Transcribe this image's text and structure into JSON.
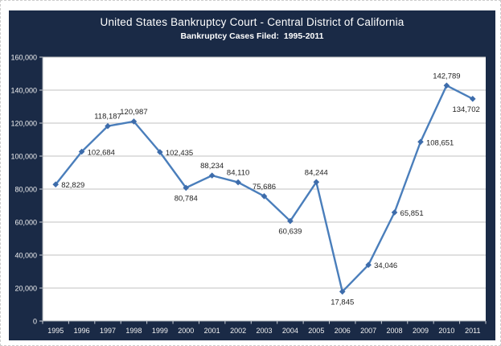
{
  "chart_data": {
    "type": "line",
    "title": "United States Bankruptcy Court - Central District of California",
    "subtitle": "Bankruptcy Cases Filed:  1995-2011",
    "xlabel": "",
    "ylabel": "",
    "categories": [
      "1995",
      "1996",
      "1997",
      "1998",
      "1999",
      "2000",
      "2001",
      "2002",
      "2003",
      "2004",
      "2005",
      "2006",
      "2007",
      "2008",
      "2009",
      "2010",
      "2011"
    ],
    "values": [
      82829,
      102684,
      118187,
      120987,
      102435,
      80784,
      88234,
      84110,
      75686,
      60639,
      84244,
      17845,
      34046,
      65851,
      108651,
      142789,
      134702
    ],
    "data_labels": [
      "82,829",
      "102,684",
      "118,187",
      "120,987",
      "102,435",
      "80,784",
      "88,234",
      "84,110",
      "75,686",
      "60,639",
      "84,244",
      "17,845",
      "34,046",
      "65,851",
      "108,651",
      "142,789",
      "134,702"
    ],
    "ylim": [
      0,
      160000
    ],
    "ytick_step": 20000,
    "ytick_labels": [
      "0",
      "20,000",
      "40,000",
      "60,000",
      "80,000",
      "100,000",
      "120,000",
      "140,000",
      "160,000"
    ],
    "grid": true,
    "legend": "none",
    "marker": "diamond",
    "label_positions": [
      "right",
      "right",
      "above",
      "above",
      "right",
      "below",
      "above",
      "above",
      "above",
      "below",
      "above",
      "below",
      "right",
      "right",
      "right",
      "above",
      "below-end"
    ],
    "colors": {
      "panel_bg": "#1a2a46",
      "plot_bg": "#ffffff",
      "gridline": "#c2c2c2",
      "axis_line": "#9aa0a8",
      "tick": "#c9ced6",
      "line": "#4a7ebb",
      "marker": "#3d6cab",
      "data_label": "#1f1f1f",
      "axis_text": "#f2f2f2"
    }
  }
}
